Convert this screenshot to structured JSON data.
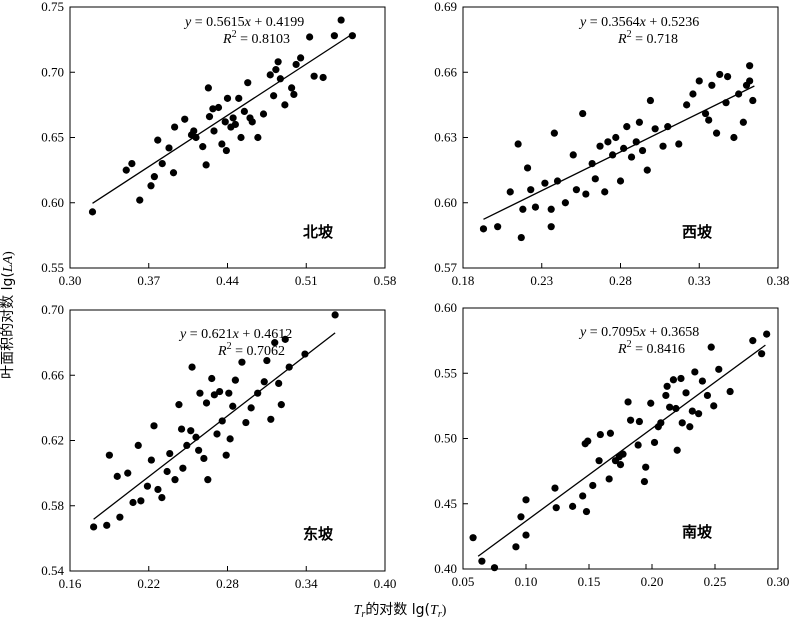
{
  "figure": {
    "ylabel_prefix": "叶面积的对数 lg(",
    "ylabel_var": "LA",
    "ylabel_suffix": ")",
    "xlabel_var": "T",
    "xlabel_sub": "r",
    "xlabel_mid": "的对数 lg(",
    "xlabel_suffix": ")"
  },
  "chart_data": [
    {
      "type": "scatter",
      "site": "北坡",
      "equation_y": "y",
      "equation_rest": " = 0.5615",
      "equation_x": "x",
      "equation_tail": " + 0.4199",
      "r2_symbol": "R",
      "r2_value": " = 0.8103",
      "slope": 0.5615,
      "intercept": 0.4199,
      "xlim": [
        0.3,
        0.58
      ],
      "ylim": [
        0.55,
        0.75
      ],
      "xticks": [
        "0.30",
        "0.37",
        "0.44",
        "0.51",
        "0.58"
      ],
      "yticks": [
        "0.55",
        "0.60",
        "0.65",
        "0.70",
        "0.75"
      ],
      "trend_x": [
        0.32,
        0.55
      ],
      "points": [
        [
          0.32,
          0.593
        ],
        [
          0.35,
          0.625
        ],
        [
          0.355,
          0.63
        ],
        [
          0.362,
          0.602
        ],
        [
          0.372,
          0.613
        ],
        [
          0.375,
          0.62
        ],
        [
          0.378,
          0.648
        ],
        [
          0.382,
          0.63
        ],
        [
          0.388,
          0.642
        ],
        [
          0.392,
          0.623
        ],
        [
          0.393,
          0.658
        ],
        [
          0.402,
          0.664
        ],
        [
          0.408,
          0.652
        ],
        [
          0.41,
          0.655
        ],
        [
          0.412,
          0.65
        ],
        [
          0.418,
          0.643
        ],
        [
          0.421,
          0.629
        ],
        [
          0.423,
          0.688
        ],
        [
          0.424,
          0.666
        ],
        [
          0.427,
          0.672
        ],
        [
          0.428,
          0.655
        ],
        [
          0.432,
          0.673
        ],
        [
          0.435,
          0.645
        ],
        [
          0.438,
          0.662
        ],
        [
          0.439,
          0.64
        ],
        [
          0.44,
          0.68
        ],
        [
          0.443,
          0.658
        ],
        [
          0.445,
          0.665
        ],
        [
          0.447,
          0.66
        ],
        [
          0.45,
          0.68
        ],
        [
          0.452,
          0.65
        ],
        [
          0.455,
          0.67
        ],
        [
          0.458,
          0.692
        ],
        [
          0.46,
          0.665
        ],
        [
          0.462,
          0.662
        ],
        [
          0.467,
          0.65
        ],
        [
          0.472,
          0.668
        ],
        [
          0.478,
          0.698
        ],
        [
          0.481,
          0.682
        ],
        [
          0.483,
          0.702
        ],
        [
          0.485,
          0.708
        ],
        [
          0.487,
          0.695
        ],
        [
          0.491,
          0.675
        ],
        [
          0.497,
          0.688
        ],
        [
          0.499,
          0.683
        ],
        [
          0.501,
          0.706
        ],
        [
          0.505,
          0.711
        ],
        [
          0.513,
          0.727
        ],
        [
          0.517,
          0.697
        ],
        [
          0.525,
          0.696
        ],
        [
          0.535,
          0.728
        ],
        [
          0.541,
          0.74
        ],
        [
          0.551,
          0.728
        ]
      ]
    },
    {
      "type": "scatter",
      "site": "西坡",
      "equation_y": "y",
      "equation_rest": " = 0.3564",
      "equation_x": "x",
      "equation_tail": " + 0.5236",
      "r2_symbol": "R",
      "r2_value": " = 0.718",
      "slope": 0.3564,
      "intercept": 0.5236,
      "xlim": [
        0.18,
        0.38
      ],
      "ylim": [
        0.57,
        0.69
      ],
      "xticks": [
        "0.18",
        "0.23",
        "0.28",
        "0.33",
        "0.38"
      ],
      "yticks": [
        "0.57",
        "0.60",
        "0.63",
        "0.66",
        "0.69"
      ],
      "trend_x": [
        0.193,
        0.365
      ],
      "points": [
        [
          0.193,
          0.588
        ],
        [
          0.202,
          0.589
        ],
        [
          0.21,
          0.605
        ],
        [
          0.215,
          0.627
        ],
        [
          0.217,
          0.584
        ],
        [
          0.218,
          0.597
        ],
        [
          0.221,
          0.616
        ],
        [
          0.223,
          0.606
        ],
        [
          0.226,
          0.598
        ],
        [
          0.232,
          0.609
        ],
        [
          0.236,
          0.597
        ],
        [
          0.236,
          0.589
        ],
        [
          0.238,
          0.632
        ],
        [
          0.24,
          0.61
        ],
        [
          0.245,
          0.6
        ],
        [
          0.25,
          0.622
        ],
        [
          0.252,
          0.606
        ],
        [
          0.256,
          0.641
        ],
        [
          0.258,
          0.604
        ],
        [
          0.262,
          0.618
        ],
        [
          0.264,
          0.611
        ],
        [
          0.267,
          0.626
        ],
        [
          0.27,
          0.605
        ],
        [
          0.272,
          0.628
        ],
        [
          0.275,
          0.622
        ],
        [
          0.277,
          0.63
        ],
        [
          0.28,
          0.61
        ],
        [
          0.282,
          0.625
        ],
        [
          0.284,
          0.635
        ],
        [
          0.287,
          0.621
        ],
        [
          0.29,
          0.628
        ],
        [
          0.292,
          0.637
        ],
        [
          0.294,
          0.624
        ],
        [
          0.297,
          0.615
        ],
        [
          0.299,
          0.647
        ],
        [
          0.302,
          0.634
        ],
        [
          0.307,
          0.626
        ],
        [
          0.31,
          0.635
        ],
        [
          0.317,
          0.627
        ],
        [
          0.322,
          0.645
        ],
        [
          0.326,
          0.65
        ],
        [
          0.33,
          0.656
        ],
        [
          0.334,
          0.641
        ],
        [
          0.336,
          0.638
        ],
        [
          0.338,
          0.654
        ],
        [
          0.341,
          0.632
        ],
        [
          0.343,
          0.659
        ],
        [
          0.347,
          0.646
        ],
        [
          0.348,
          0.658
        ],
        [
          0.352,
          0.63
        ],
        [
          0.355,
          0.65
        ],
        [
          0.358,
          0.637
        ],
        [
          0.36,
          0.654
        ],
        [
          0.362,
          0.656
        ],
        [
          0.362,
          0.663
        ],
        [
          0.364,
          0.647
        ]
      ]
    },
    {
      "type": "scatter",
      "site": "东坡",
      "equation_y": "y",
      "equation_rest": " = 0.621",
      "equation_x": "x",
      "equation_tail": " + 0.4612",
      "r2_symbol": "R",
      "r2_value": " = 0.7062",
      "slope": 0.621,
      "intercept": 0.4612,
      "xlim": [
        0.16,
        0.4
      ],
      "ylim": [
        0.54,
        0.7
      ],
      "xticks": [
        "0.16",
        "0.22",
        "0.28",
        "0.34",
        "0.40"
      ],
      "yticks": [
        "0.54",
        "0.58",
        "0.62",
        "0.66",
        "0.70"
      ],
      "trend_x": [
        0.178,
        0.362
      ],
      "points": [
        [
          0.178,
          0.567
        ],
        [
          0.188,
          0.568
        ],
        [
          0.19,
          0.611
        ],
        [
          0.196,
          0.598
        ],
        [
          0.198,
          0.573
        ],
        [
          0.204,
          0.6
        ],
        [
          0.208,
          0.582
        ],
        [
          0.212,
          0.617
        ],
        [
          0.214,
          0.583
        ],
        [
          0.219,
          0.592
        ],
        [
          0.222,
          0.608
        ],
        [
          0.224,
          0.629
        ],
        [
          0.227,
          0.59
        ],
        [
          0.23,
          0.585
        ],
        [
          0.234,
          0.601
        ],
        [
          0.236,
          0.612
        ],
        [
          0.24,
          0.596
        ],
        [
          0.243,
          0.642
        ],
        [
          0.245,
          0.627
        ],
        [
          0.246,
          0.603
        ],
        [
          0.249,
          0.617
        ],
        [
          0.252,
          0.626
        ],
        [
          0.253,
          0.665
        ],
        [
          0.256,
          0.622
        ],
        [
          0.258,
          0.614
        ],
        [
          0.259,
          0.649
        ],
        [
          0.262,
          0.609
        ],
        [
          0.264,
          0.643
        ],
        [
          0.265,
          0.596
        ],
        [
          0.268,
          0.658
        ],
        [
          0.27,
          0.648
        ],
        [
          0.272,
          0.624
        ],
        [
          0.274,
          0.65
        ],
        [
          0.276,
          0.632
        ],
        [
          0.279,
          0.611
        ],
        [
          0.281,
          0.649
        ],
        [
          0.282,
          0.621
        ],
        [
          0.284,
          0.641
        ],
        [
          0.286,
          0.657
        ],
        [
          0.291,
          0.668
        ],
        [
          0.294,
          0.631
        ],
        [
          0.298,
          0.64
        ],
        [
          0.303,
          0.649
        ],
        [
          0.308,
          0.656
        ],
        [
          0.31,
          0.669
        ],
        [
          0.313,
          0.633
        ],
        [
          0.316,
          0.68
        ],
        [
          0.319,
          0.655
        ],
        [
          0.321,
          0.642
        ],
        [
          0.324,
          0.682
        ],
        [
          0.327,
          0.665
        ],
        [
          0.339,
          0.673
        ],
        [
          0.362,
          0.697
        ]
      ]
    },
    {
      "type": "scatter",
      "site": "南坡",
      "equation_y": "y",
      "equation_rest": " = 0.7095",
      "equation_x": "x",
      "equation_tail": " + 0.3658",
      "r2_symbol": "R",
      "r2_value": " = 0.8416",
      "slope": 0.7095,
      "intercept": 0.3658,
      "xlim": [
        0.05,
        0.3
      ],
      "ylim": [
        0.4,
        0.6
      ],
      "xticks": [
        "0.05",
        "0.10",
        "0.15",
        "0.20",
        "0.25",
        "0.30"
      ],
      "yticks": [
        "0.40",
        "0.45",
        "0.50",
        "0.55",
        "0.60"
      ],
      "trend_x": [
        0.062,
        0.29
      ],
      "points": [
        [
          0.058,
          0.424
        ],
        [
          0.065,
          0.406
        ],
        [
          0.075,
          0.401
        ],
        [
          0.092,
          0.417
        ],
        [
          0.096,
          0.44
        ],
        [
          0.1,
          0.426
        ],
        [
          0.1,
          0.453
        ],
        [
          0.123,
          0.462
        ],
        [
          0.124,
          0.447
        ],
        [
          0.137,
          0.448
        ],
        [
          0.145,
          0.456
        ],
        [
          0.147,
          0.496
        ],
        [
          0.148,
          0.444
        ],
        [
          0.149,
          0.498
        ],
        [
          0.153,
          0.464
        ],
        [
          0.158,
          0.483
        ],
        [
          0.159,
          0.503
        ],
        [
          0.166,
          0.469
        ],
        [
          0.167,
          0.504
        ],
        [
          0.171,
          0.483
        ],
        [
          0.174,
          0.486
        ],
        [
          0.175,
          0.48
        ],
        [
          0.177,
          0.488
        ],
        [
          0.181,
          0.528
        ],
        [
          0.183,
          0.514
        ],
        [
          0.189,
          0.495
        ],
        [
          0.19,
          0.513
        ],
        [
          0.194,
          0.467
        ],
        [
          0.195,
          0.478
        ],
        [
          0.199,
          0.527
        ],
        [
          0.202,
          0.497
        ],
        [
          0.205,
          0.509
        ],
        [
          0.207,
          0.512
        ],
        [
          0.211,
          0.533
        ],
        [
          0.212,
          0.54
        ],
        [
          0.214,
          0.524
        ],
        [
          0.217,
          0.545
        ],
        [
          0.219,
          0.523
        ],
        [
          0.22,
          0.491
        ],
        [
          0.223,
          0.546
        ],
        [
          0.224,
          0.512
        ],
        [
          0.227,
          0.535
        ],
        [
          0.23,
          0.509
        ],
        [
          0.232,
          0.521
        ],
        [
          0.234,
          0.551
        ],
        [
          0.237,
          0.519
        ],
        [
          0.24,
          0.544
        ],
        [
          0.244,
          0.533
        ],
        [
          0.247,
          0.57
        ],
        [
          0.249,
          0.525
        ],
        [
          0.253,
          0.553
        ],
        [
          0.262,
          0.536
        ],
        [
          0.28,
          0.575
        ],
        [
          0.287,
          0.565
        ],
        [
          0.291,
          0.58
        ]
      ]
    }
  ]
}
